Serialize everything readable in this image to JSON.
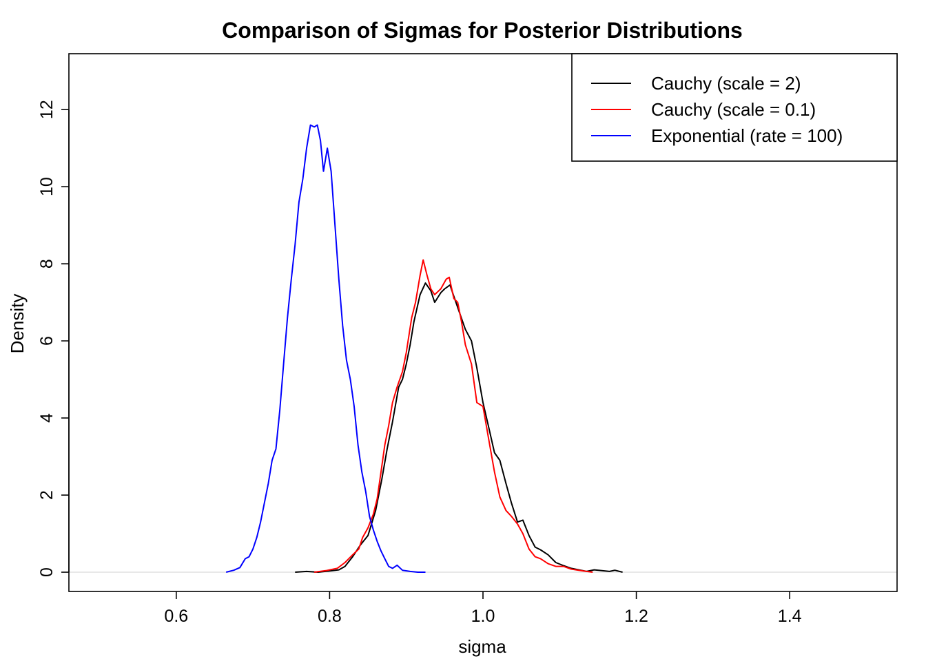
{
  "chart_data": {
    "type": "line",
    "title": "Comparison of Sigmas for Posterior Distributions",
    "xlabel": "sigma",
    "ylabel": "Density",
    "xlim": [
      0.46,
      1.54
    ],
    "ylim": [
      -0.5,
      13.45
    ],
    "xticks": [
      0.6,
      0.8,
      1.0,
      1.2,
      1.4
    ],
    "xtick_labels": [
      "0.6",
      "0.8",
      "1.0",
      "1.2",
      "1.4"
    ],
    "yticks": [
      0,
      2,
      4,
      6,
      8,
      10,
      12
    ],
    "ytick_labels": [
      "0",
      "2",
      "4",
      "6",
      "8",
      "10",
      "12"
    ],
    "grid": false,
    "zero_line_color": "#d9d9d9",
    "legend_position": "top-right",
    "series": [
      {
        "name": "Cauchy (scale = 2)",
        "color": "#000000",
        "points": [
          [
            0.755,
            0.0
          ],
          [
            0.77,
            0.02
          ],
          [
            0.785,
            0.0
          ],
          [
            0.8,
            0.03
          ],
          [
            0.812,
            0.06
          ],
          [
            0.82,
            0.15
          ],
          [
            0.83,
            0.4
          ],
          [
            0.84,
            0.7
          ],
          [
            0.85,
            0.95
          ],
          [
            0.86,
            1.6
          ],
          [
            0.868,
            2.4
          ],
          [
            0.875,
            3.2
          ],
          [
            0.882,
            3.9
          ],
          [
            0.89,
            4.8
          ],
          [
            0.895,
            5.0
          ],
          [
            0.9,
            5.4
          ],
          [
            0.905,
            5.9
          ],
          [
            0.91,
            6.5
          ],
          [
            0.918,
            7.2
          ],
          [
            0.925,
            7.5
          ],
          [
            0.932,
            7.3
          ],
          [
            0.937,
            7.0
          ],
          [
            0.945,
            7.25
          ],
          [
            0.95,
            7.35
          ],
          [
            0.957,
            7.45
          ],
          [
            0.963,
            7.1
          ],
          [
            0.97,
            6.7
          ],
          [
            0.977,
            6.3
          ],
          [
            0.985,
            6.0
          ],
          [
            0.992,
            5.3
          ],
          [
            1.0,
            4.4
          ],
          [
            1.007,
            3.8
          ],
          [
            1.015,
            3.1
          ],
          [
            1.022,
            2.9
          ],
          [
            1.03,
            2.3
          ],
          [
            1.037,
            1.8
          ],
          [
            1.045,
            1.3
          ],
          [
            1.052,
            1.35
          ],
          [
            1.06,
            0.95
          ],
          [
            1.068,
            0.65
          ],
          [
            1.075,
            0.58
          ],
          [
            1.085,
            0.45
          ],
          [
            1.095,
            0.25
          ],
          [
            1.105,
            0.17
          ],
          [
            1.115,
            0.1
          ],
          [
            1.125,
            0.06
          ],
          [
            1.135,
            0.02
          ],
          [
            1.145,
            0.06
          ],
          [
            1.155,
            0.04
          ],
          [
            1.165,
            0.02
          ],
          [
            1.172,
            0.05
          ],
          [
            1.182,
            0.0
          ]
        ]
      },
      {
        "name": "Cauchy (scale = 0.1)",
        "color": "#ff0000",
        "points": [
          [
            0.78,
            0.0
          ],
          [
            0.795,
            0.04
          ],
          [
            0.81,
            0.1
          ],
          [
            0.82,
            0.25
          ],
          [
            0.83,
            0.45
          ],
          [
            0.838,
            0.6
          ],
          [
            0.843,
            0.9
          ],
          [
            0.85,
            1.15
          ],
          [
            0.857,
            1.5
          ],
          [
            0.862,
            1.9
          ],
          [
            0.867,
            2.6
          ],
          [
            0.872,
            3.3
          ],
          [
            0.877,
            3.8
          ],
          [
            0.882,
            4.4
          ],
          [
            0.888,
            4.8
          ],
          [
            0.895,
            5.2
          ],
          [
            0.9,
            5.7
          ],
          [
            0.907,
            6.6
          ],
          [
            0.912,
            7.0
          ],
          [
            0.918,
            7.7
          ],
          [
            0.922,
            8.1
          ],
          [
            0.927,
            7.7
          ],
          [
            0.932,
            7.35
          ],
          [
            0.937,
            7.2
          ],
          [
            0.945,
            7.35
          ],
          [
            0.952,
            7.6
          ],
          [
            0.956,
            7.65
          ],
          [
            0.962,
            7.1
          ],
          [
            0.967,
            7.0
          ],
          [
            0.972,
            6.5
          ],
          [
            0.977,
            5.9
          ],
          [
            0.985,
            5.4
          ],
          [
            0.992,
            4.4
          ],
          [
            1.0,
            4.3
          ],
          [
            1.007,
            3.5
          ],
          [
            1.015,
            2.6
          ],
          [
            1.022,
            1.95
          ],
          [
            1.03,
            1.6
          ],
          [
            1.037,
            1.45
          ],
          [
            1.045,
            1.25
          ],
          [
            1.052,
            1.0
          ],
          [
            1.06,
            0.6
          ],
          [
            1.068,
            0.4
          ],
          [
            1.075,
            0.35
          ],
          [
            1.085,
            0.22
          ],
          [
            1.095,
            0.15
          ],
          [
            1.105,
            0.15
          ],
          [
            1.115,
            0.08
          ],
          [
            1.125,
            0.05
          ],
          [
            1.135,
            0.02
          ],
          [
            1.143,
            0.0
          ]
        ]
      },
      {
        "name": "Exponential (rate = 100)",
        "color": "#0000ff",
        "points": [
          [
            0.665,
            0.0
          ],
          [
            0.675,
            0.05
          ],
          [
            0.683,
            0.12
          ],
          [
            0.69,
            0.35
          ],
          [
            0.695,
            0.4
          ],
          [
            0.7,
            0.6
          ],
          [
            0.705,
            0.9
          ],
          [
            0.71,
            1.3
          ],
          [
            0.715,
            1.8
          ],
          [
            0.72,
            2.3
          ],
          [
            0.725,
            2.9
          ],
          [
            0.73,
            3.2
          ],
          [
            0.735,
            4.2
          ],
          [
            0.74,
            5.4
          ],
          [
            0.745,
            6.6
          ],
          [
            0.75,
            7.6
          ],
          [
            0.755,
            8.5
          ],
          [
            0.76,
            9.6
          ],
          [
            0.765,
            10.2
          ],
          [
            0.77,
            11.0
          ],
          [
            0.775,
            11.6
          ],
          [
            0.78,
            11.55
          ],
          [
            0.784,
            11.6
          ],
          [
            0.788,
            11.2
          ],
          [
            0.792,
            10.4
          ],
          [
            0.797,
            11.0
          ],
          [
            0.802,
            10.4
          ],
          [
            0.807,
            9.0
          ],
          [
            0.812,
            7.6
          ],
          [
            0.817,
            6.4
          ],
          [
            0.822,
            5.5
          ],
          [
            0.827,
            5.0
          ],
          [
            0.832,
            4.3
          ],
          [
            0.837,
            3.3
          ],
          [
            0.842,
            2.6
          ],
          [
            0.847,
            2.1
          ],
          [
            0.852,
            1.45
          ],
          [
            0.857,
            1.1
          ],
          [
            0.862,
            0.8
          ],
          [
            0.867,
            0.55
          ],
          [
            0.872,
            0.35
          ],
          [
            0.877,
            0.15
          ],
          [
            0.882,
            0.1
          ],
          [
            0.888,
            0.18
          ],
          [
            0.895,
            0.05
          ],
          [
            0.905,
            0.02
          ],
          [
            0.915,
            0.0
          ],
          [
            0.925,
            0.0
          ]
        ]
      }
    ]
  }
}
